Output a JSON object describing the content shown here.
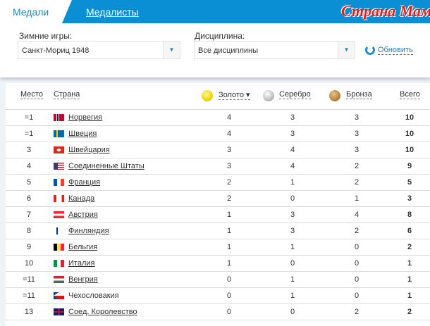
{
  "tabs": [
    {
      "label": "Медали",
      "active": true
    },
    {
      "label": "Медалисты",
      "active": false
    }
  ],
  "filters": {
    "games_label": "Зимние игры:",
    "games_value": "Санкт-Мориц 1948",
    "discipline_label": "Дисциплина:",
    "discipline_value": "Все дисциплины",
    "refresh_label": "Обновить"
  },
  "headers": {
    "rank": "Место",
    "country": "Страна",
    "gold": "Золото ▾",
    "silver": "Серебро",
    "bronze": "Бронза",
    "total": "Всего"
  },
  "colors": {
    "accent": "#0a8fd4",
    "gold": "#f2d600",
    "silver": "#bdbdbd",
    "bronze": "#b8863b"
  },
  "rows": [
    {
      "rank": "=1",
      "country": "Норвегия",
      "flag": "norway-flag",
      "link": true,
      "gold": "4",
      "silver": "3",
      "bronze": "3",
      "total": "10"
    },
    {
      "rank": "=1",
      "country": "Швеция",
      "flag": "sweden-flag",
      "link": true,
      "gold": "4",
      "silver": "3",
      "bronze": "3",
      "total": "10"
    },
    {
      "rank": "3",
      "country": "Швейцария",
      "flag": "switzerland-flag",
      "link": true,
      "gold": "3",
      "silver": "4",
      "bronze": "3",
      "total": "10"
    },
    {
      "rank": "4",
      "country": "Соединенные Штаты",
      "flag": "usa-flag",
      "link": true,
      "gold": "3",
      "silver": "4",
      "bronze": "2",
      "total": "9"
    },
    {
      "rank": "5",
      "country": "Франция",
      "flag": "france-flag",
      "link": true,
      "gold": "2",
      "silver": "1",
      "bronze": "2",
      "total": "5"
    },
    {
      "rank": "6",
      "country": "Канада",
      "flag": "canada-flag",
      "link": true,
      "gold": "2",
      "silver": "0",
      "bronze": "1",
      "total": "3"
    },
    {
      "rank": "7",
      "country": "Австрия",
      "flag": "austria-flag",
      "link": true,
      "gold": "1",
      "silver": "3",
      "bronze": "4",
      "total": "8"
    },
    {
      "rank": "8",
      "country": "Финляндия",
      "flag": "finland-flag",
      "link": true,
      "gold": "1",
      "silver": "3",
      "bronze": "2",
      "total": "6"
    },
    {
      "rank": "9",
      "country": "Бельгия",
      "flag": "belgium-flag",
      "link": true,
      "gold": "1",
      "silver": "1",
      "bronze": "0",
      "total": "2"
    },
    {
      "rank": "10",
      "country": "Италия",
      "flag": "italy-flag",
      "link": true,
      "gold": "1",
      "silver": "0",
      "bronze": "0",
      "total": "1"
    },
    {
      "rank": "=11",
      "country": "Венгрия",
      "flag": "hungary-flag",
      "link": true,
      "gold": "0",
      "silver": "1",
      "bronze": "0",
      "total": "1"
    },
    {
      "rank": "=11",
      "country": "Чехословакия",
      "flag": "czechoslovakia-flag",
      "link": false,
      "gold": "0",
      "silver": "1",
      "bronze": "0",
      "total": "1"
    },
    {
      "rank": "13",
      "country": "Соед. Королевство",
      "flag": "uk-flag",
      "link": true,
      "gold": "0",
      "silver": "0",
      "bronze": "2",
      "total": "2"
    }
  ],
  "watermark": "Страна Мам"
}
